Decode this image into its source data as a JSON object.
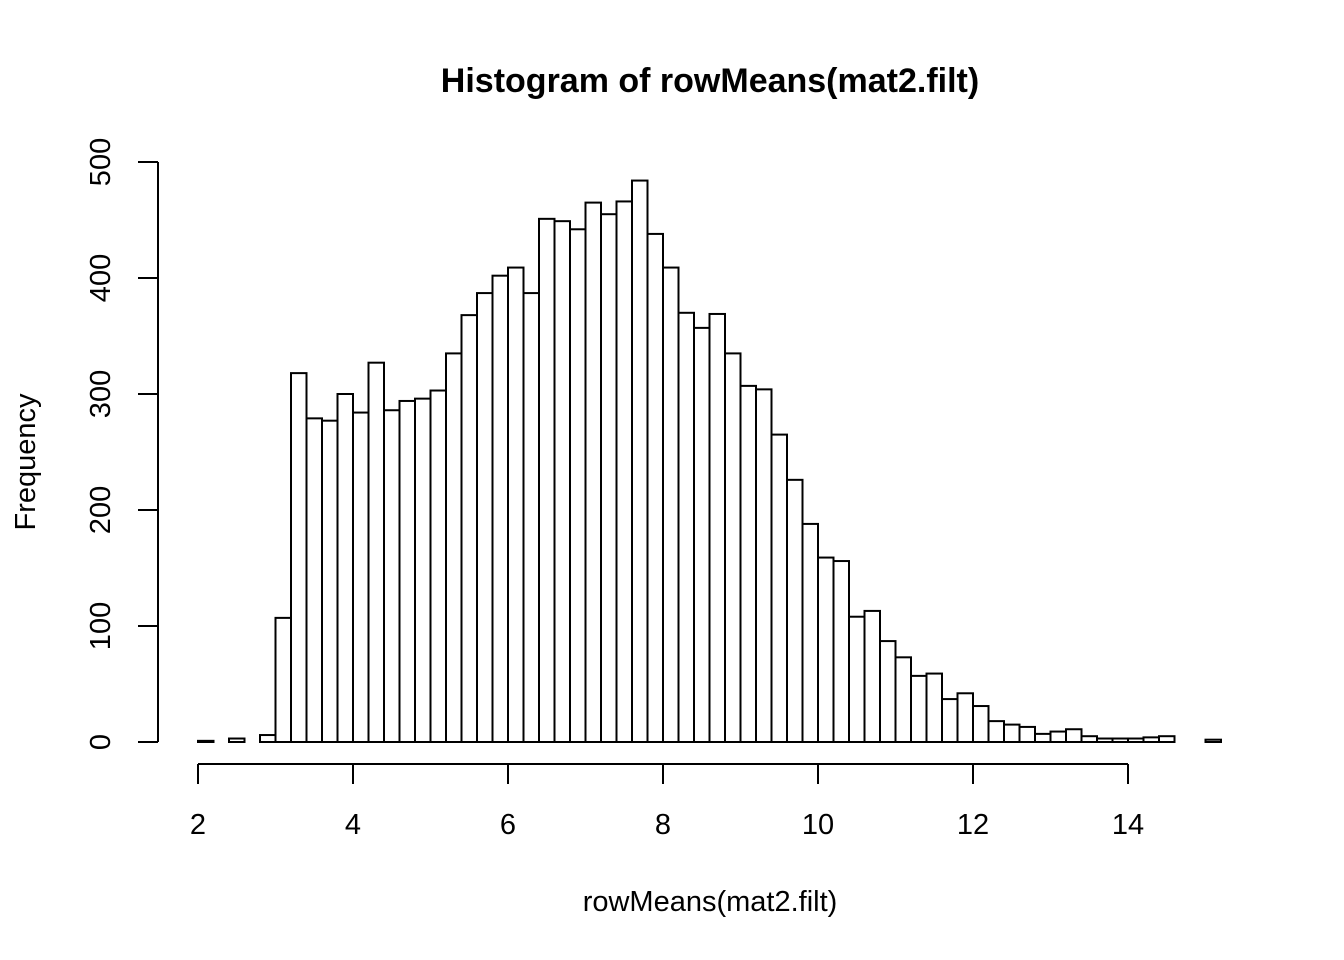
{
  "chart_data": {
    "type": "bar",
    "title": "Histogram of rowMeans(mat2.filt)",
    "xlabel": "rowMeans(mat2.filt)",
    "ylabel": "Frequency",
    "bin_width": 0.2,
    "bin_start": 2.0,
    "xlim": [
      2,
      15.2
    ],
    "ylim": [
      0,
      500
    ],
    "x_ticks": [
      2,
      4,
      6,
      8,
      10,
      12,
      14
    ],
    "y_ticks": [
      0,
      100,
      200,
      300,
      400,
      500
    ],
    "grid": false,
    "values": [
      1,
      0,
      3,
      0,
      6,
      107,
      318,
      279,
      277,
      300,
      284,
      327,
      286,
      294,
      296,
      303,
      335,
      368,
      387,
      402,
      409,
      387,
      451,
      449,
      442,
      465,
      455,
      466,
      484,
      438,
      409,
      370,
      357,
      369,
      335,
      307,
      304,
      265,
      226,
      188,
      159,
      156,
      108,
      113,
      87,
      73,
      57,
      59,
      37,
      42,
      31,
      18,
      15,
      13,
      7,
      9,
      11,
      5,
      3,
      3,
      3,
      4,
      5,
      0,
      0,
      2
    ]
  }
}
